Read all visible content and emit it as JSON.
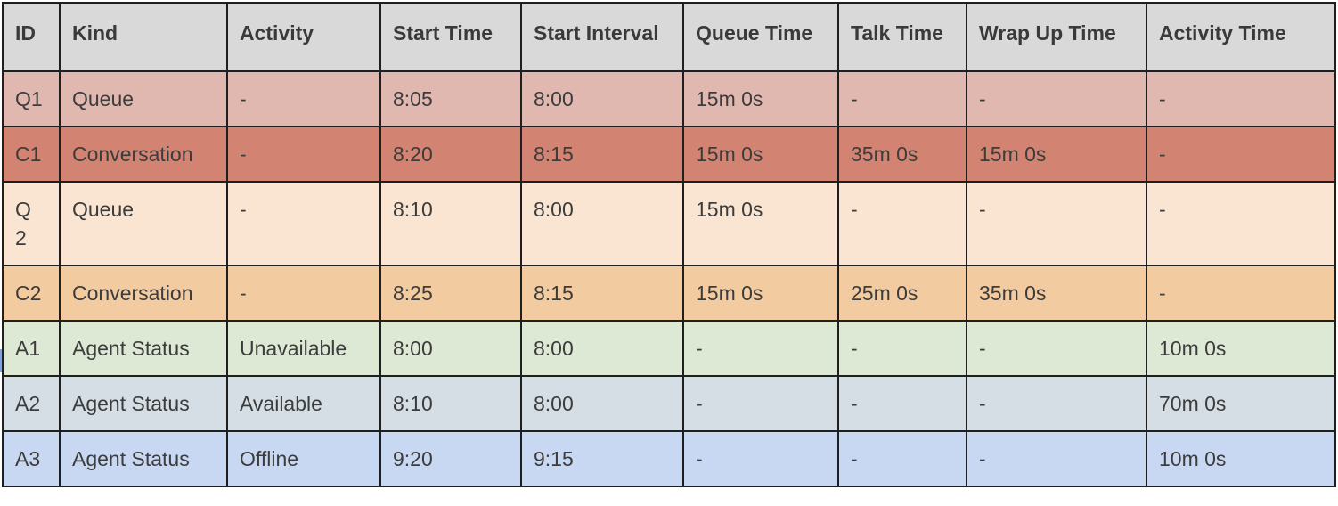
{
  "headers": [
    "ID",
    "Kind",
    "Activity",
    "Start Time",
    "Start Interval",
    "Queue Time",
    "Talk Time",
    "Wrap Up Time",
    "Activity Time"
  ],
  "rows": [
    [
      "Q1",
      "Queue",
      "-",
      "8:05",
      "8:00",
      "15m 0s",
      "-",
      "-",
      "-"
    ],
    [
      "C1",
      "Conversation",
      "-",
      "8:20",
      "8:15",
      "15m 0s",
      "35m 0s",
      "15m 0s",
      "-"
    ],
    [
      "Q 2",
      "Queue",
      "-",
      "8:10",
      "8:00",
      "15m 0s",
      "-",
      "-",
      "-"
    ],
    [
      "C2",
      "Conversation",
      "-",
      "8:25",
      "8:15",
      "15m 0s",
      "25m 0s",
      "35m 0s",
      "-"
    ],
    [
      "A1",
      "Agent Status",
      "Unavailable",
      "8:00",
      "8:00",
      "-",
      "-",
      "-",
      "10m 0s"
    ],
    [
      "A2",
      "Agent Status",
      "Available",
      "8:10",
      "8:00",
      "-",
      "-",
      "-",
      "70m 0s"
    ],
    [
      "A3",
      "Agent Status",
      "Offline",
      "9:20",
      "9:15",
      "-",
      "-",
      "-",
      "10m 0s"
    ]
  ],
  "row_colors": [
    "#e0b8b0",
    "#d28372",
    "#f9e5d1",
    "#f3cba0",
    "#dde8d5",
    "#d5dee4",
    "#c9d8f2"
  ],
  "header_color": "#d9d9d9"
}
